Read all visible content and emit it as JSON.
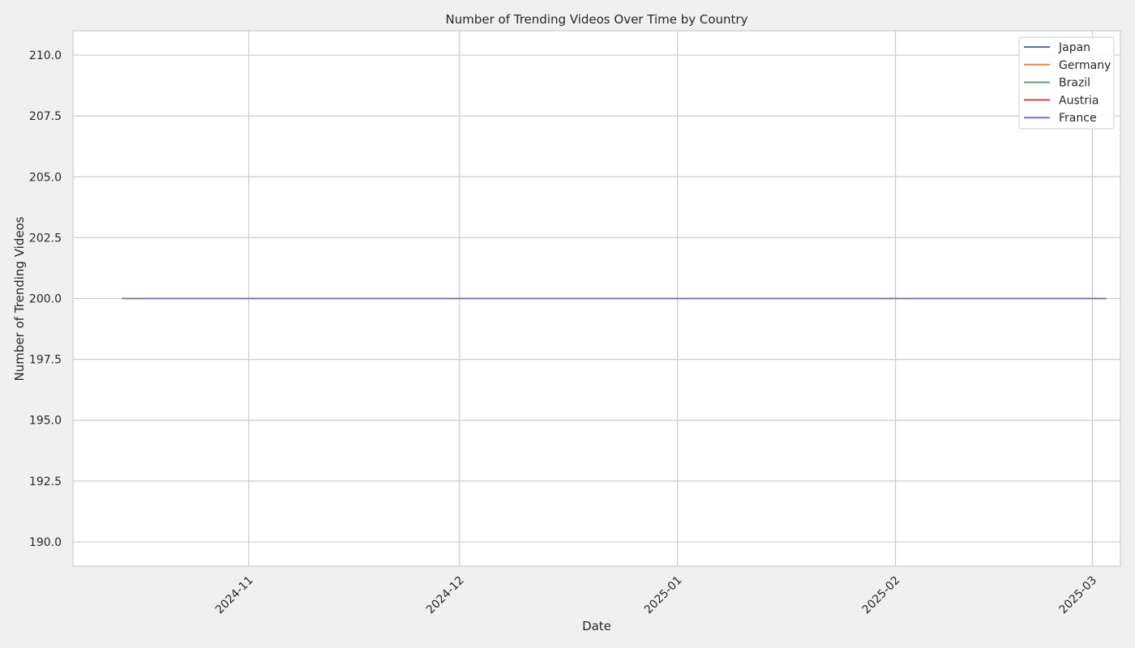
{
  "chart_data": {
    "type": "line",
    "title": "Number of Trending Videos Over Time by Country",
    "xlabel": "Date",
    "ylabel": "Number of Trending Videos",
    "x_ticks": [
      "2024-11",
      "2024-12",
      "2025-01",
      "2025-02",
      "2025-03"
    ],
    "y_ticks": [
      "190.0",
      "192.5",
      "195.0",
      "197.5",
      "200.0",
      "202.5",
      "205.0",
      "207.5",
      "210.0"
    ],
    "ylim": [
      189.0,
      211.0
    ],
    "xlim": [
      "2024-10-07",
      "2025-03-03"
    ],
    "series": [
      {
        "name": "Japan",
        "color": "#4c72b0",
        "x": [
          "2024-10-14",
          "2025-03-03"
        ],
        "values": [
          200,
          200
        ]
      },
      {
        "name": "Germany",
        "color": "#dd8452",
        "x": [
          "2024-10-14",
          "2025-03-03"
        ],
        "values": [
          200,
          200
        ]
      },
      {
        "name": "Brazil",
        "color": "#55a868",
        "x": [
          "2024-10-14",
          "2025-03-03"
        ],
        "values": [
          200,
          200
        ]
      },
      {
        "name": "Austria",
        "color": "#c44e52",
        "x": [
          "2024-10-14",
          "2025-03-03"
        ],
        "values": [
          200,
          200
        ]
      },
      {
        "name": "France",
        "color": "#8172b3",
        "x": [
          "2024-10-14",
          "2025-03-03"
        ],
        "values": [
          200,
          200
        ]
      }
    ],
    "grid": true,
    "legend_position": "top-right"
  }
}
